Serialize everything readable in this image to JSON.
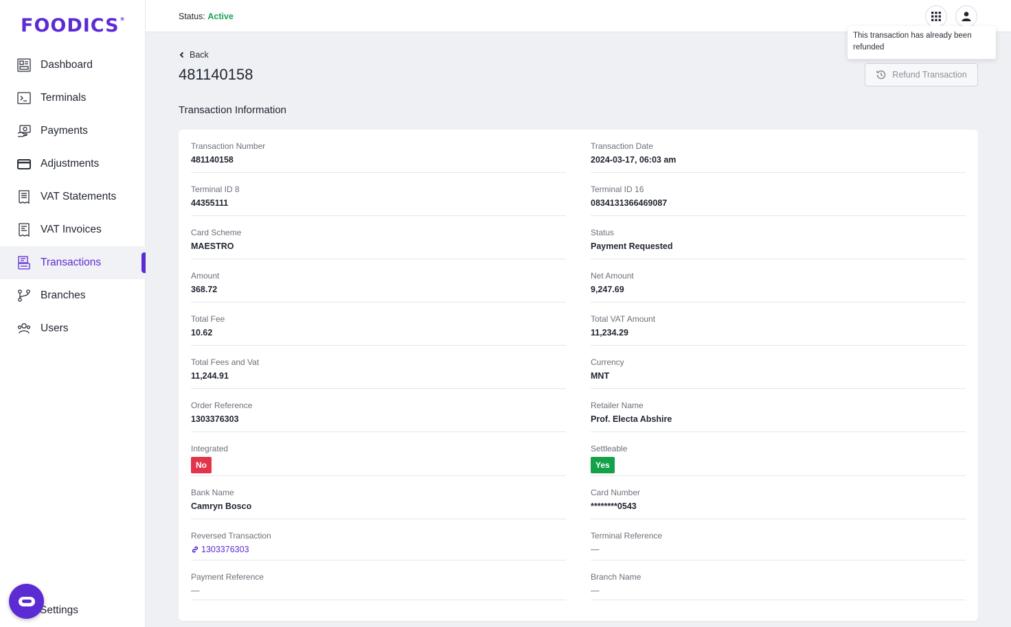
{
  "brand": {
    "logo_text": "FOODICS",
    "logo_mark": "®"
  },
  "sidebar": {
    "items": [
      {
        "label": "Dashboard",
        "icon": "dashboard-icon"
      },
      {
        "label": "Terminals",
        "icon": "terminal-icon"
      },
      {
        "label": "Payments",
        "icon": "payments-icon"
      },
      {
        "label": "Adjustments",
        "icon": "card-icon"
      },
      {
        "label": "VAT Statements",
        "icon": "receipt-icon"
      },
      {
        "label": "VAT Invoices",
        "icon": "invoice-icon"
      },
      {
        "label": "Transactions",
        "icon": "transactions-icon",
        "active": true
      },
      {
        "label": "Branches",
        "icon": "branches-icon"
      },
      {
        "label": "Users",
        "icon": "users-icon"
      }
    ],
    "settings_label": "Settings"
  },
  "header": {
    "status_label": "Status:",
    "status_value": "Active",
    "status_color": "#1aa55a",
    "apps_icon": "grid-icon",
    "user_icon": "user-icon"
  },
  "tooltip": {
    "text": "This transaction has already been refunded"
  },
  "page": {
    "back_label": "Back",
    "title": "481140158",
    "refund_label": "Refund Transaction",
    "section_title": "Transaction Information"
  },
  "fields": {
    "transaction_number": {
      "label": "Transaction Number",
      "value": "481140158"
    },
    "transaction_date": {
      "label": "Transaction Date",
      "value": "2024-03-17, 06:03 am"
    },
    "terminal_id8": {
      "label": "Terminal ID 8",
      "value": "44355111"
    },
    "terminal_id16": {
      "label": "Terminal ID 16",
      "value": "0834131366469087"
    },
    "card_scheme": {
      "label": "Card Scheme",
      "value": "MAESTRO"
    },
    "status": {
      "label": "Status",
      "value": "Payment Requested"
    },
    "amount": {
      "label": "Amount",
      "value": "368.72"
    },
    "net_amount": {
      "label": "Net Amount",
      "value": "9,247.69"
    },
    "total_fee": {
      "label": "Total Fee",
      "value": "10.62"
    },
    "total_vat_amount": {
      "label": "Total VAT Amount",
      "value": "11,234.29"
    },
    "total_fees_vat": {
      "label": "Total Fees and Vat",
      "value": "11,244.91"
    },
    "currency": {
      "label": "Currency",
      "value": "MNT"
    },
    "order_reference": {
      "label": "Order Reference",
      "value": "1303376303"
    },
    "retailer_name": {
      "label": "Retailer Name",
      "value": "Prof. Electa Abshire"
    },
    "integrated": {
      "label": "Integrated",
      "value": "No",
      "color": "#e3354a"
    },
    "settleable": {
      "label": "Settleable",
      "value": "Yes",
      "color": "#13a14a"
    },
    "bank_name": {
      "label": "Bank Name",
      "value": "Camryn Bosco"
    },
    "card_number": {
      "label": "Card Number",
      "value": "********0543"
    },
    "reversed_transaction": {
      "label": "Reversed Transaction",
      "value": "1303376303"
    },
    "terminal_reference": {
      "label": "Terminal Reference",
      "value": "—"
    },
    "payment_reference": {
      "label": "Payment Reference",
      "value": "—"
    },
    "branch_name": {
      "label": "Branch Name",
      "value": "—"
    }
  },
  "colors": {
    "accent": "#5b2bd3"
  }
}
